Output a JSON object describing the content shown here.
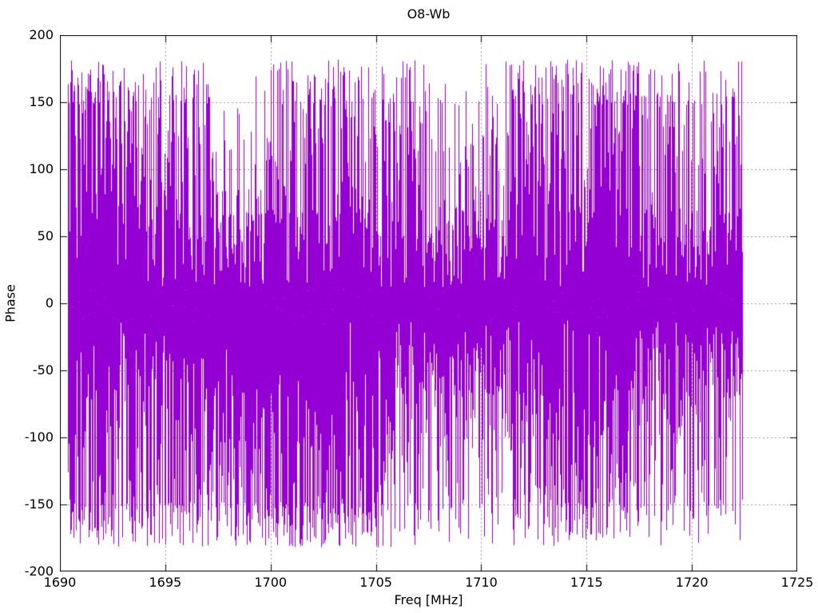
{
  "chart_data": {
    "type": "line",
    "title": "O8-Wb",
    "xlabel": "Freq [MHz]",
    "ylabel": "Phase",
    "xlim": [
      1690,
      1725
    ],
    "ylim": [
      -200,
      200
    ],
    "x_ticks": [
      "1690",
      "1695",
      "1700",
      "1705",
      "1710",
      "1715",
      "1720",
      "1725"
    ],
    "x_tick_values": [
      1690,
      1695,
      1700,
      1705,
      1710,
      1715,
      1720,
      1725
    ],
    "y_ticks": [
      "-200",
      "-150",
      "-100",
      "-50",
      "0",
      "50",
      "100",
      "150",
      "200"
    ],
    "y_tick_values": [
      -200,
      -150,
      -100,
      -50,
      0,
      50,
      100,
      150,
      200
    ],
    "grid": true,
    "grid_color": "#9a9a9a",
    "border_color": "#000000",
    "background_color": "#ffffff",
    "legend": "none",
    "series": [
      {
        "name": "phase",
        "color": "#9400D3",
        "description": "Densely sampled wrapped interferometric phase noise; values fill -180..180 deg, rendered as connected vertical strokes",
        "x_start_mhz": 1690.38,
        "x_end_mhz": 1722.42,
        "wrap_deg": 180,
        "n_columns": 845,
        "seed": 20240917,
        "top_spike_prob": 0.3,
        "deep_bottom_prob": 0.42,
        "short_column_prob": 0.02
      }
    ]
  }
}
